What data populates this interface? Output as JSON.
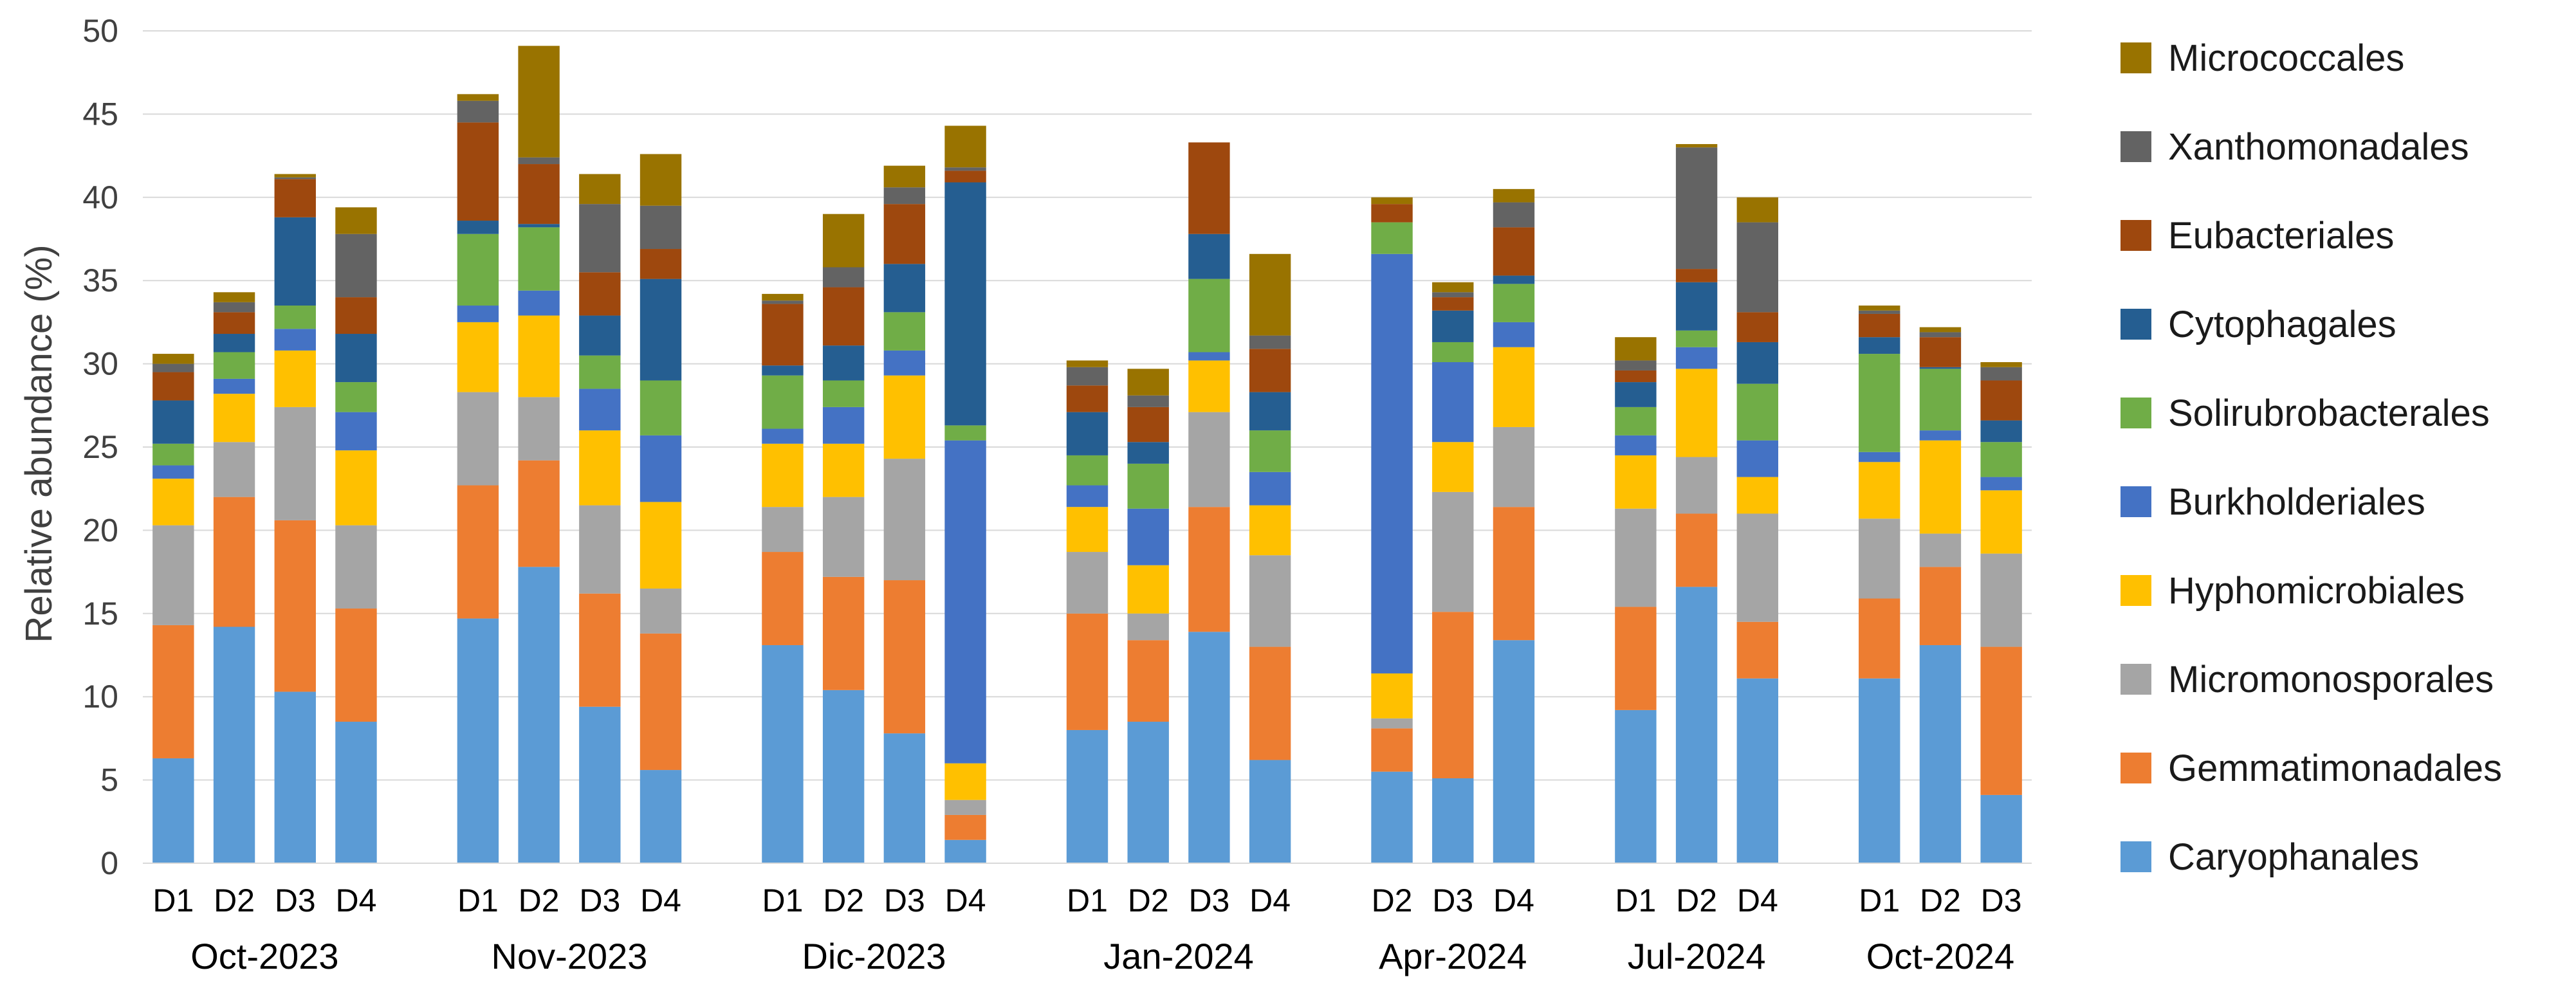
{
  "chart_data": {
    "type": "bar",
    "stacked": true,
    "ylabel": "Relative abundance (%)",
    "ylim": [
      0,
      50
    ],
    "yticks": [
      0,
      5,
      10,
      15,
      20,
      25,
      30,
      35,
      40,
      45,
      50
    ],
    "grid": true,
    "legend_position": "right",
    "groups": [
      {
        "label": "Oct-2023",
        "samples": [
          "D1",
          "D2",
          "D3",
          "D4"
        ]
      },
      {
        "label": "Nov-2023",
        "samples": [
          "D1",
          "D2",
          "D3",
          "D4"
        ]
      },
      {
        "label": "Dic-2023",
        "samples": [
          "D1",
          "D2",
          "D3",
          "D4"
        ]
      },
      {
        "label": "Jan-2024",
        "samples": [
          "D1",
          "D2",
          "D3",
          "D4"
        ]
      },
      {
        "label": "Apr-2024",
        "samples": [
          "D2",
          "D3",
          "D4"
        ]
      },
      {
        "label": "Jul-2024",
        "samples": [
          "D1",
          "D2",
          "D4"
        ]
      },
      {
        "label": "Oct-2024",
        "samples": [
          "D1",
          "D2",
          "D3"
        ]
      }
    ],
    "series": [
      {
        "name": "Caryophanales",
        "color": "#5b9bd5",
        "values": [
          6.3,
          14.2,
          10.3,
          8.5,
          14.7,
          17.8,
          9.4,
          5.6,
          13.1,
          10.4,
          7.8,
          1.4,
          8.0,
          8.5,
          13.9,
          6.2,
          5.5,
          5.1,
          13.4,
          9.2,
          16.6,
          11.1,
          11.1,
          13.1,
          4.1
        ]
      },
      {
        "name": "Gemmatimonadales",
        "color": "#ed7d31",
        "values": [
          8.0,
          7.8,
          10.3,
          6.8,
          8.0,
          6.4,
          6.8,
          8.2,
          5.6,
          6.8,
          9.2,
          1.5,
          7.0,
          4.9,
          7.5,
          6.8,
          2.6,
          10.0,
          8.0,
          6.2,
          4.4,
          3.4,
          4.8,
          4.7,
          8.9
        ]
      },
      {
        "name": "Micromonosporales",
        "color": "#a5a5a5",
        "values": [
          6.0,
          3.3,
          6.8,
          5.0,
          5.6,
          3.8,
          5.3,
          2.7,
          2.7,
          4.8,
          7.3,
          0.9,
          3.7,
          1.6,
          5.7,
          5.5,
          0.6,
          7.2,
          4.8,
          5.9,
          3.4,
          6.5,
          4.8,
          2.0,
          5.6
        ]
      },
      {
        "name": "Hyphomicrobiales",
        "color": "#ffc000",
        "values": [
          2.8,
          2.9,
          3.4,
          4.5,
          4.2,
          4.9,
          4.5,
          5.2,
          3.8,
          3.2,
          5.0,
          2.2,
          2.7,
          2.9,
          3.1,
          3.0,
          2.7,
          3.0,
          4.8,
          3.2,
          5.3,
          2.2,
          3.4,
          5.6,
          3.8
        ]
      },
      {
        "name": "Burkholderiales",
        "color": "#4472c4",
        "values": [
          0.8,
          0.9,
          1.3,
          2.3,
          1.0,
          1.5,
          2.5,
          4.0,
          0.9,
          2.2,
          1.5,
          19.4,
          1.3,
          3.4,
          0.5,
          2.0,
          25.2,
          4.8,
          1.5,
          1.2,
          1.3,
          2.2,
          0.6,
          0.6,
          0.8
        ]
      },
      {
        "name": "Solirubrobacterales",
        "color": "#70ad47",
        "values": [
          1.3,
          1.6,
          1.4,
          1.8,
          4.3,
          3.8,
          2.0,
          3.3,
          3.2,
          1.6,
          2.3,
          0.9,
          1.8,
          2.7,
          4.4,
          2.5,
          1.9,
          1.2,
          2.3,
          1.7,
          1.0,
          3.4,
          5.9,
          3.7,
          2.1
        ]
      },
      {
        "name": "Cytophagales",
        "color": "#255e91",
        "values": [
          2.6,
          1.1,
          5.3,
          2.9,
          0.8,
          0.2,
          2.4,
          6.1,
          0.6,
          2.1,
          2.9,
          14.6,
          2.6,
          1.3,
          2.7,
          2.3,
          0.0,
          1.9,
          0.5,
          1.5,
          2.9,
          2.5,
          1.0,
          0.1,
          1.3
        ]
      },
      {
        "name": "Eubacteriales",
        "color": "#9e480e",
        "values": [
          1.7,
          1.3,
          2.3,
          2.2,
          5.9,
          3.6,
          2.6,
          1.8,
          3.7,
          3.5,
          3.6,
          0.7,
          1.6,
          2.1,
          5.5,
          2.6,
          1.1,
          0.8,
          2.9,
          0.7,
          0.8,
          1.8,
          1.4,
          1.8,
          2.4
        ]
      },
      {
        "name": "Xanthomonadales",
        "color": "#636363",
        "values": [
          0.5,
          0.6,
          0.1,
          3.8,
          1.3,
          0.4,
          4.1,
          2.6,
          0.2,
          1.2,
          1.0,
          0.2,
          1.1,
          0.7,
          0.0,
          0.8,
          0.0,
          0.3,
          1.5,
          0.6,
          7.3,
          5.4,
          0.2,
          0.3,
          0.8
        ]
      },
      {
        "name": "Micrococcales",
        "color": "#997300",
        "values": [
          0.6,
          0.6,
          0.2,
          1.6,
          0.4,
          6.7,
          1.8,
          3.1,
          0.4,
          3.2,
          1.3,
          2.5,
          0.4,
          1.6,
          0.0,
          4.9,
          0.4,
          0.6,
          0.8,
          1.4,
          0.2,
          1.5,
          0.3,
          0.3,
          0.3
        ]
      }
    ]
  }
}
